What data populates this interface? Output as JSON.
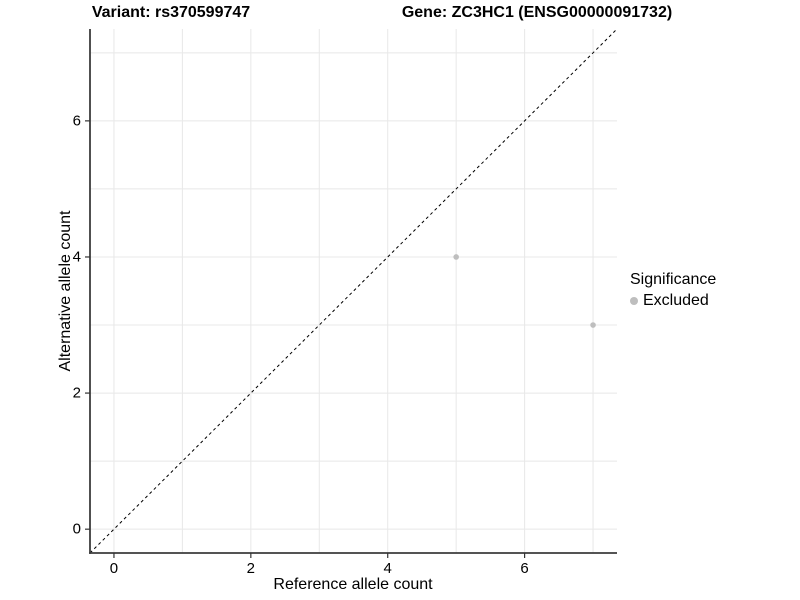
{
  "chart_data": {
    "type": "scatter",
    "title_left": "Variant: rs370599747",
    "title_right": "Gene: ZC3HC1 (ENSG00000091732)",
    "xlabel": "Reference allele count",
    "ylabel": "Alternative allele count",
    "xlim": [
      -0.35,
      7.35
    ],
    "ylim": [
      -0.35,
      7.35
    ],
    "x_ticks": [
      0,
      2,
      4,
      6
    ],
    "y_ticks": [
      0,
      2,
      4,
      6
    ],
    "minor_grid": [
      1,
      3,
      5,
      7
    ],
    "grid": true,
    "legend_position": "right",
    "identity_line": {
      "slope": 1,
      "intercept": 0,
      "style": "dashed",
      "color": "#000000"
    },
    "series": [
      {
        "name": "Excluded",
        "color": "#bebebe",
        "points": [
          {
            "x": 5,
            "y": 4
          },
          {
            "x": 7,
            "y": 3
          }
        ]
      }
    ],
    "legend": {
      "title": "Significance",
      "items": [
        {
          "label": "Excluded",
          "color": "#bebebe"
        }
      ]
    },
    "colors": {
      "grid": "#e8e8e8",
      "axis": "#3c3c3c",
      "tick": "#333333",
      "point": "#bebebe"
    }
  }
}
